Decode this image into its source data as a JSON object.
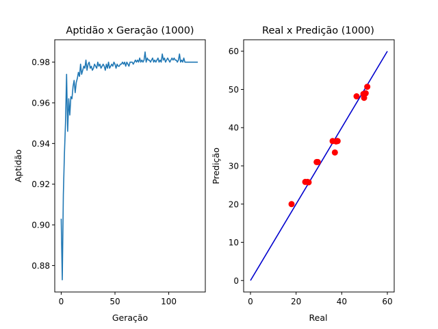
{
  "colors": {
    "line": "#1f77b4",
    "points": "#ff0000",
    "ideal_line": "#0000cd",
    "axes": "#000000",
    "background": "#ffffff"
  },
  "chart_data": [
    {
      "type": "line",
      "title": "Aptidão x Geração (1000)",
      "xlabel": "Geração",
      "ylabel": "Aptidão",
      "xlim": [
        -6,
        134
      ],
      "ylim": [
        0.867,
        0.991
      ],
      "xticks": [
        0,
        50,
        100
      ],
      "yticks": [
        0.88,
        0.9,
        0.92,
        0.94,
        0.96,
        0.98
      ],
      "xtick_labels": [
        "0",
        "50",
        "100"
      ],
      "ytick_labels": [
        "0.88",
        "0.90",
        "0.92",
        "0.94",
        "0.96",
        "0.98"
      ],
      "grid": false,
      "series": [
        {
          "x": [
            0,
            1,
            2,
            3,
            4,
            5,
            6,
            7,
            8,
            9,
            10,
            11,
            12,
            13,
            14,
            15,
            16,
            17,
            18,
            19,
            20,
            21,
            22,
            23,
            24,
            25,
            26,
            27,
            28,
            29,
            30,
            31,
            32,
            33,
            34,
            35,
            36,
            37,
            38,
            39,
            40,
            41,
            42,
            43,
            44,
            45,
            46,
            47,
            48,
            49,
            50,
            51,
            52,
            53,
            54,
            55,
            56,
            57,
            58,
            59,
            60,
            61,
            62,
            63,
            64,
            65,
            66,
            67,
            68,
            69,
            70,
            71,
            72,
            73,
            74,
            75,
            76,
            77,
            78,
            79,
            80,
            81,
            82,
            83,
            84,
            85,
            86,
            87,
            88,
            89,
            90,
            91,
            92,
            93,
            94,
            95,
            96,
            97,
            98,
            99,
            100,
            101,
            102,
            103,
            104,
            105,
            106,
            107,
            108,
            109,
            110,
            111,
            112,
            113,
            114,
            115,
            116,
            117,
            118,
            119,
            120,
            121,
            122,
            123,
            124,
            125,
            126,
            127
          ],
          "y": [
            0.903,
            0.873,
            0.915,
            0.935,
            0.95,
            0.974,
            0.946,
            0.962,
            0.954,
            0.963,
            0.962,
            0.968,
            0.971,
            0.965,
            0.97,
            0.972,
            0.975,
            0.973,
            0.979,
            0.974,
            0.976,
            0.978,
            0.977,
            0.981,
            0.976,
            0.979,
            0.98,
            0.977,
            0.978,
            0.976,
            0.977,
            0.979,
            0.978,
            0.977,
            0.98,
            0.978,
            0.979,
            0.977,
            0.978,
            0.979,
            0.978,
            0.976,
            0.979,
            0.977,
            0.98,
            0.977,
            0.978,
            0.979,
            0.978,
            0.98,
            0.979,
            0.977,
            0.979,
            0.978,
            0.978,
            0.979,
            0.979,
            0.98,
            0.979,
            0.98,
            0.978,
            0.98,
            0.979,
            0.978,
            0.98,
            0.98,
            0.98,
            0.979,
            0.98,
            0.981,
            0.98,
            0.981,
            0.98,
            0.982,
            0.98,
            0.981,
            0.98,
            0.981,
            0.985,
            0.98,
            0.982,
            0.981,
            0.981,
            0.98,
            0.981,
            0.982,
            0.98,
            0.981,
            0.98,
            0.981,
            0.982,
            0.98,
            0.981,
            0.98,
            0.984,
            0.981,
            0.982,
            0.98,
            0.981,
            0.982,
            0.981,
            0.98,
            0.981,
            0.982,
            0.981,
            0.982,
            0.981,
            0.981,
            0.98,
            0.981,
            0.984,
            0.98,
            0.981,
            0.98,
            0.982,
            0.98,
            0.98,
            0.98,
            0.98,
            0.98,
            0.98,
            0.98,
            0.98,
            0.98,
            0.98,
            0.98,
            0.98,
            0.98
          ]
        }
      ]
    },
    {
      "type": "scatter",
      "title": "Real x Predição (1000)",
      "xlabel": "Real",
      "ylabel": "Predição",
      "xlim": [
        -3,
        63
      ],
      "ylim": [
        -3,
        63
      ],
      "xticks": [
        0,
        20,
        40,
        60
      ],
      "yticks": [
        0,
        10,
        20,
        30,
        40,
        50,
        60
      ],
      "xtick_labels": [
        "0",
        "20",
        "40",
        "60"
      ],
      "ytick_labels": [
        "0",
        "10",
        "20",
        "30",
        "40",
        "50",
        "60"
      ],
      "grid": false,
      "reference_line": {
        "x": [
          0,
          60
        ],
        "y": [
          0,
          60
        ]
      },
      "series": [
        {
          "x": [
            18.0,
            24.0,
            25.0,
            25.5,
            29.0,
            29.5,
            36.0,
            37.0,
            37.5,
            38.0,
            38.2,
            46.5,
            49.5,
            49.8,
            50.5,
            51.2
          ],
          "y": [
            20.0,
            25.8,
            25.8,
            25.7,
            31.0,
            31.0,
            36.5,
            33.5,
            36.4,
            36.5,
            36.5,
            48.2,
            48.8,
            47.8,
            49.0,
            50.7
          ]
        }
      ]
    }
  ]
}
